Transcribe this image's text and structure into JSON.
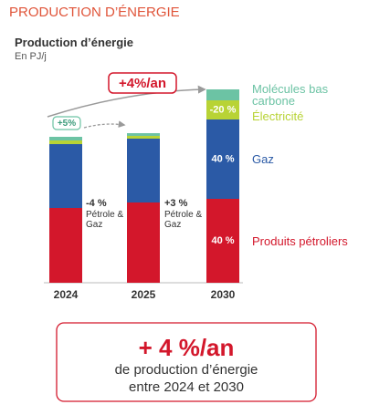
{
  "header": "PRODUCTION D’ÉNERGIE",
  "chart_data": {
    "type": "stacked_bar",
    "title": "Production d’énergie",
    "subtitle": "En PJ/j",
    "categories": [
      "2024",
      "2025",
      "2030"
    ],
    "series": [
      {
        "name": "Produits pétroliers",
        "color": "#d3172b",
        "values": [
          82,
          88,
          92
        ],
        "share_labels": [
          null,
          null,
          "40 %"
        ]
      },
      {
        "name": "Gaz",
        "color": "#2b5aa6",
        "values": [
          70,
          70,
          87
        ],
        "share_labels": [
          null,
          null,
          "40 %"
        ]
      },
      {
        "name": "Électricité",
        "color": "#b8d335",
        "values": [
          4,
          3,
          21
        ],
        "share_labels": [
          null,
          null,
          "-20 %"
        ]
      },
      {
        "name": "Molécules bas carbone",
        "color": "#6cc3a4",
        "values": [
          4,
          3,
          12
        ],
        "share_labels": [
          null,
          null,
          null
        ]
      }
    ],
    "annotations": {
      "growth_total": "+4%/an",
      "growth_2025": "+5%",
      "oil_gas_2024": {
        "change": "-4 %",
        "label": "Pétrole & Gaz"
      },
      "oil_gas_2025": {
        "change": "+3 %",
        "label": "Pétrole & Gaz"
      }
    }
  },
  "summary": {
    "headline": "+ 4 %/an",
    "line1": "de production d’énergie",
    "line2": "entre 2024 et 2030"
  }
}
